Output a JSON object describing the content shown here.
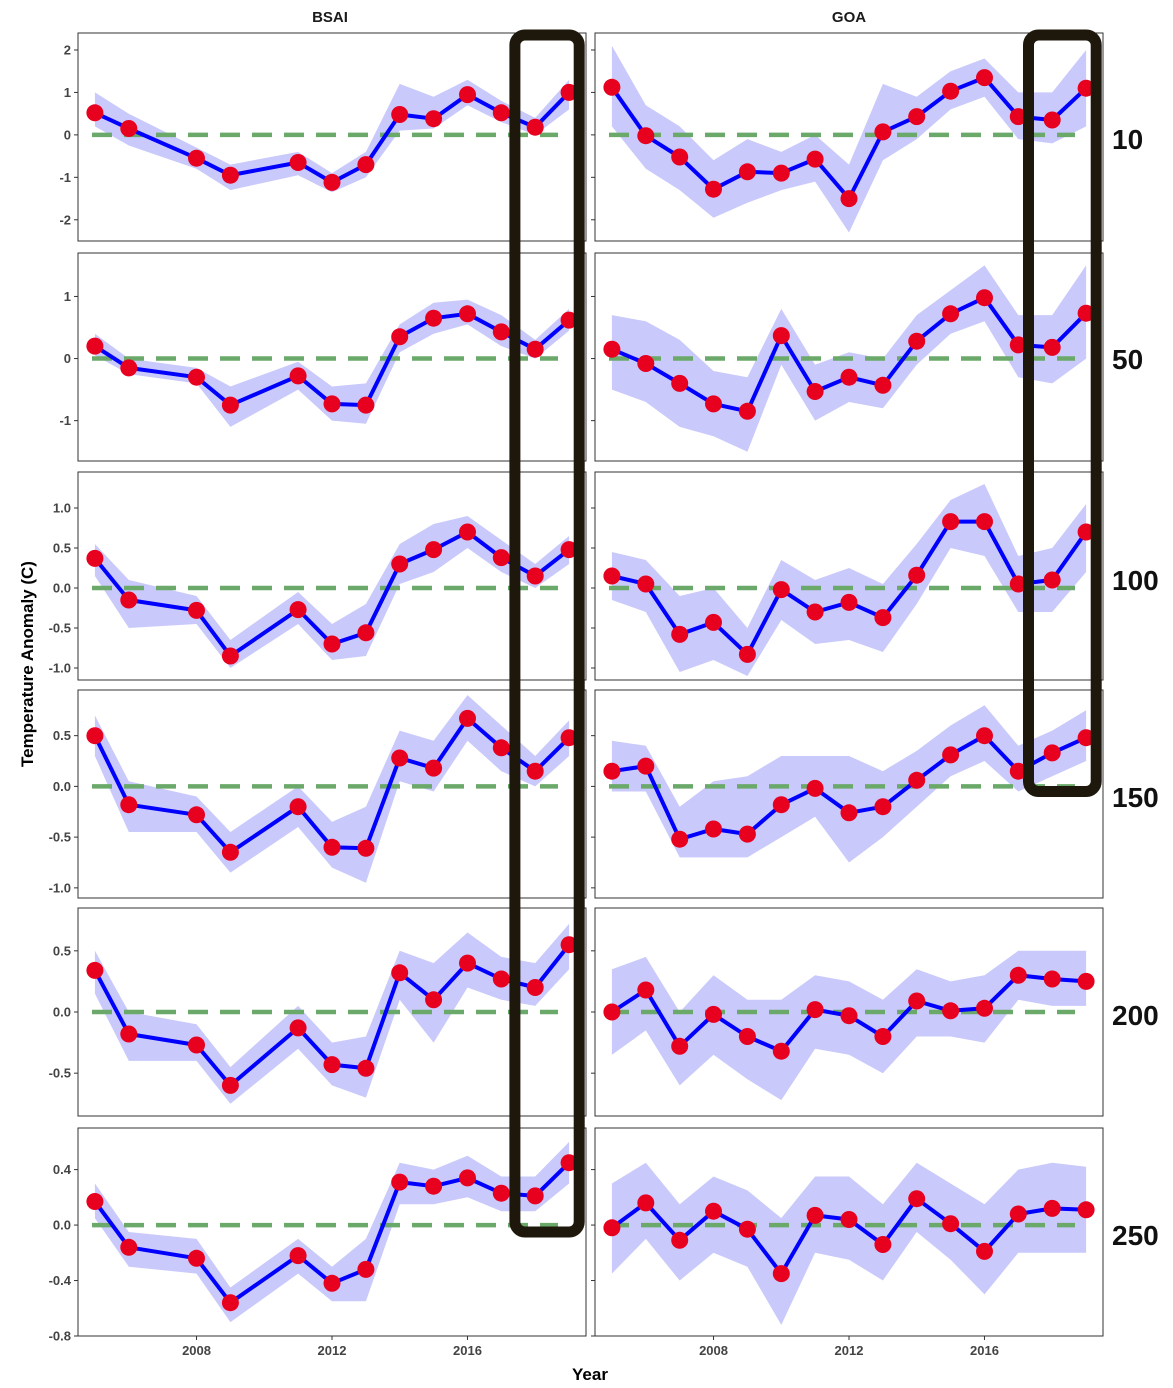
{
  "chart_data": {
    "type": "line",
    "xlabel": "Year",
    "ylabel": "Temperature Anomaly (C)",
    "columns": [
      "BSAI",
      "GOA"
    ],
    "rows": [
      "10",
      "50",
      "100",
      "150",
      "200",
      "250"
    ],
    "x_ticks": [
      2008,
      2012,
      2016
    ],
    "xlim": [
      2004.5,
      2019.5
    ],
    "grid": false,
    "colors": {
      "line": "#0000ff",
      "point": "#e8001f",
      "ribbon": "#c9c9fb",
      "zero_line": "#6aa96a",
      "highlight_box": "#1e170b"
    },
    "highlights": [
      {
        "column": "BSAI",
        "rows": [
          "10",
          "250"
        ],
        "x_range": [
          2017.4,
          2019.3
        ]
      },
      {
        "column": "GOA",
        "rows": [
          "10",
          "150"
        ],
        "x_range": [
          2017.3,
          2019.3
        ]
      }
    ],
    "panels": {
      "BSAI": {
        "x": [
          2005,
          2006,
          2008,
          2009,
          2011,
          2012,
          2013,
          2014,
          2015,
          2016,
          2017,
          2018,
          2019
        ],
        "10": {
          "ylim": [
            -2.5,
            2.4
          ],
          "yticks": [
            -2,
            -1,
            0,
            1,
            2
          ],
          "tick_labels": [
            "-2",
            "-1",
            "0",
            "1",
            "2"
          ],
          "y": [
            0.52,
            0.15,
            -0.55,
            -0.95,
            -0.65,
            -1.12,
            -0.7,
            0.48,
            0.38,
            0.95,
            0.52,
            0.18,
            1.0
          ],
          "lower": [
            0.2,
            -0.25,
            -0.8,
            -1.3,
            -0.95,
            -1.35,
            -1.0,
            0.1,
            0.15,
            0.7,
            0.3,
            0.0,
            0.6
          ],
          "upper": [
            1.0,
            0.5,
            -0.3,
            -0.7,
            -0.4,
            -0.9,
            -0.4,
            1.2,
            0.9,
            1.3,
            0.8,
            0.4,
            1.3
          ]
        },
        "50": {
          "ylim": [
            -1.65,
            1.7
          ],
          "yticks": [
            -1,
            0,
            1
          ],
          "tick_labels": [
            "-1",
            "0",
            "1"
          ],
          "y": [
            0.2,
            -0.15,
            -0.3,
            -0.75,
            -0.28,
            -0.73,
            -0.75,
            0.35,
            0.65,
            0.72,
            0.43,
            0.15,
            0.62
          ],
          "lower": [
            0.05,
            -0.25,
            -0.4,
            -1.1,
            -0.5,
            -1.0,
            -1.05,
            0.1,
            0.4,
            0.55,
            0.2,
            0.0,
            0.45
          ],
          "upper": [
            0.4,
            0.0,
            -0.15,
            -0.45,
            -0.05,
            -0.45,
            -0.4,
            0.55,
            0.9,
            0.95,
            0.7,
            0.3,
            0.8
          ]
        },
        "100": {
          "ylim": [
            -1.15,
            1.45
          ],
          "yticks": [
            -1.0,
            -0.5,
            0.0,
            0.5,
            1.0
          ],
          "tick_labels": [
            "-1.0",
            "-0.5",
            "0.0",
            "0.5",
            "1.0"
          ],
          "y": [
            0.37,
            -0.15,
            -0.28,
            -0.85,
            -0.27,
            -0.7,
            -0.56,
            0.3,
            0.48,
            0.7,
            0.38,
            0.15,
            0.48
          ],
          "lower": [
            0.15,
            -0.5,
            -0.45,
            -1.0,
            -0.45,
            -0.9,
            -0.85,
            0.05,
            0.2,
            0.5,
            0.2,
            0.0,
            0.3
          ],
          "upper": [
            0.55,
            0.1,
            -0.1,
            -0.65,
            -0.05,
            -0.45,
            -0.2,
            0.55,
            0.8,
            0.9,
            0.6,
            0.3,
            0.65
          ]
        },
        "150": {
          "ylim": [
            -1.1,
            0.95
          ],
          "yticks": [
            -1.0,
            -0.5,
            0.0,
            0.5
          ],
          "tick_labels": [
            "-1.0",
            "-0.5",
            "0.0",
            "0.5"
          ],
          "y": [
            0.5,
            -0.18,
            -0.28,
            -0.65,
            -0.2,
            -0.6,
            -0.61,
            0.28,
            0.18,
            0.67,
            0.38,
            0.15,
            0.48
          ],
          "lower": [
            0.3,
            -0.45,
            -0.45,
            -0.85,
            -0.4,
            -0.8,
            -0.95,
            0.05,
            -0.05,
            0.45,
            0.15,
            0.0,
            0.3
          ],
          "upper": [
            0.7,
            0.05,
            -0.1,
            -0.45,
            0.0,
            -0.35,
            -0.2,
            0.55,
            0.45,
            0.9,
            0.6,
            0.3,
            0.65
          ]
        },
        "200": {
          "ylim": [
            -0.85,
            0.85
          ],
          "yticks": [
            -0.5,
            0.0,
            0.5
          ],
          "tick_labels": [
            "-0.5",
            "0.0",
            "0.5"
          ],
          "y": [
            0.34,
            -0.18,
            -0.27,
            -0.6,
            -0.13,
            -0.43,
            -0.46,
            0.32,
            0.1,
            0.4,
            0.27,
            0.2,
            0.55
          ],
          "lower": [
            0.15,
            -0.4,
            -0.4,
            -0.75,
            -0.3,
            -0.6,
            -0.7,
            0.1,
            -0.25,
            0.2,
            0.1,
            0.05,
            0.35
          ],
          "upper": [
            0.5,
            0.0,
            -0.1,
            -0.45,
            0.05,
            -0.25,
            -0.2,
            0.5,
            0.4,
            0.65,
            0.45,
            0.4,
            0.72
          ]
        },
        "250": {
          "ylim": [
            -0.8,
            0.7
          ],
          "yticks": [
            -0.8,
            -0.4,
            0.0,
            0.4
          ],
          "tick_labels": [
            "-0.8",
            "-0.4",
            "0.0",
            "0.4"
          ],
          "y": [
            0.17,
            -0.16,
            -0.24,
            -0.56,
            -0.22,
            -0.42,
            -0.32,
            0.31,
            0.28,
            0.34,
            0.23,
            0.21,
            0.45
          ],
          "lower": [
            0.05,
            -0.3,
            -0.35,
            -0.7,
            -0.35,
            -0.55,
            -0.55,
            0.15,
            0.15,
            0.2,
            0.1,
            0.1,
            0.3
          ],
          "upper": [
            0.3,
            -0.05,
            -0.1,
            -0.45,
            -0.1,
            -0.3,
            -0.1,
            0.45,
            0.4,
            0.5,
            0.35,
            0.35,
            0.6
          ]
        }
      },
      "GOA": {
        "x": [
          2005,
          2006,
          2007,
          2008,
          2009,
          2010,
          2011,
          2012,
          2013,
          2014,
          2015,
          2016,
          2017,
          2018,
          2019
        ],
        "10": {
          "ylim": [
            -2.5,
            2.4
          ],
          "yticks": [
            -2,
            -1,
            0,
            1,
            2
          ],
          "tick_labels": [
            "-2",
            "-1",
            "0",
            "1",
            "2"
          ],
          "y": [
            1.12,
            -0.02,
            -0.52,
            -1.28,
            -0.87,
            -0.9,
            -0.57,
            -1.5,
            0.07,
            0.43,
            1.03,
            1.35,
            0.43,
            0.35,
            1.1
          ],
          "lower": [
            0.2,
            -0.8,
            -1.3,
            -1.95,
            -1.6,
            -1.3,
            -1.1,
            -2.3,
            -0.6,
            -0.1,
            0.6,
            0.9,
            -0.1,
            -0.2,
            0.2
          ],
          "upper": [
            2.1,
            0.7,
            0.2,
            -0.6,
            -0.1,
            -0.4,
            0.0,
            -0.7,
            1.2,
            0.9,
            1.5,
            1.8,
            1.0,
            1.0,
            2.0
          ]
        },
        "50": {
          "ylim": [
            -1.65,
            1.7
          ],
          "yticks": [
            -1,
            0,
            1
          ],
          "tick_labels": [
            "-1",
            "0",
            "1"
          ],
          "y": [
            0.15,
            -0.08,
            -0.4,
            -0.73,
            -0.85,
            0.37,
            -0.53,
            -0.3,
            -0.43,
            0.28,
            0.72,
            0.98,
            0.22,
            0.18,
            0.73
          ],
          "lower": [
            -0.5,
            -0.7,
            -1.1,
            -1.25,
            -1.5,
            -0.1,
            -1.0,
            -0.7,
            -0.8,
            -0.1,
            0.4,
            0.6,
            -0.3,
            -0.4,
            0.0
          ],
          "upper": [
            0.7,
            0.6,
            0.3,
            -0.2,
            -0.3,
            0.8,
            -0.1,
            0.1,
            0.0,
            0.7,
            1.1,
            1.5,
            0.7,
            0.7,
            1.5
          ]
        },
        "100": {
          "ylim": [
            -1.15,
            1.45
          ],
          "yticks": [
            -1.0,
            -0.5,
            0.0,
            0.5,
            1.0
          ],
          "tick_labels": [
            "-1.0",
            "-0.5",
            "0.0",
            "0.5",
            "1.0"
          ],
          "y": [
            0.15,
            0.05,
            -0.58,
            -0.43,
            -0.83,
            -0.02,
            -0.3,
            -0.18,
            -0.37,
            0.16,
            0.83,
            0.83,
            0.05,
            0.1,
            0.7
          ],
          "lower": [
            -0.15,
            -0.3,
            -1.05,
            -0.9,
            -1.1,
            -0.4,
            -0.7,
            -0.65,
            -0.8,
            -0.2,
            0.5,
            0.4,
            -0.3,
            -0.3,
            0.2
          ],
          "upper": [
            0.45,
            0.35,
            -0.1,
            0.0,
            -0.5,
            0.35,
            0.1,
            0.25,
            0.05,
            0.55,
            1.1,
            1.3,
            0.4,
            0.5,
            1.05
          ]
        },
        "150": {
          "ylim": [
            -1.1,
            0.95
          ],
          "yticks": [
            -1.0,
            -0.5,
            0.0,
            0.5
          ],
          "tick_labels": [
            "-1.0",
            "-0.5",
            "0.0",
            "0.5"
          ],
          "y": [
            0.15,
            0.2,
            -0.52,
            -0.42,
            -0.47,
            -0.18,
            -0.02,
            -0.26,
            -0.2,
            0.06,
            0.31,
            0.5,
            0.15,
            0.33,
            0.48
          ],
          "lower": [
            -0.05,
            -0.05,
            -0.7,
            -0.7,
            -0.7,
            -0.5,
            -0.3,
            -0.75,
            -0.5,
            -0.2,
            0.1,
            0.25,
            -0.05,
            0.1,
            0.25
          ],
          "upper": [
            0.45,
            0.4,
            -0.2,
            0.05,
            0.1,
            0.3,
            0.3,
            0.3,
            0.15,
            0.35,
            0.6,
            0.8,
            0.4,
            0.55,
            0.75
          ]
        },
        "200": {
          "ylim": [
            -0.85,
            0.85
          ],
          "yticks": [
            -0.5,
            0.0,
            0.5
          ],
          "tick_labels": [
            "-0.5",
            "0.0",
            "0.5"
          ],
          "y": [
            0.0,
            0.18,
            -0.28,
            -0.02,
            -0.2,
            -0.32,
            0.02,
            -0.03,
            -0.2,
            0.09,
            0.01,
            0.03,
            0.3,
            0.27,
            0.25
          ],
          "lower": [
            -0.35,
            -0.15,
            -0.6,
            -0.35,
            -0.55,
            -0.72,
            -0.3,
            -0.35,
            -0.5,
            -0.2,
            -0.2,
            -0.25,
            0.1,
            0.05,
            0.05
          ],
          "upper": [
            0.35,
            0.45,
            0.0,
            0.3,
            0.1,
            0.1,
            0.3,
            0.25,
            0.1,
            0.35,
            0.25,
            0.3,
            0.5,
            0.5,
            0.5
          ]
        },
        "250": {
          "ylim": [
            -0.8,
            0.7
          ],
          "yticks": [
            -0.8,
            -0.4,
            0.0,
            0.4
          ],
          "tick_labels": [
            "-0.8",
            "-0.4",
            "0.0",
            "0.4"
          ],
          "y": [
            -0.02,
            0.16,
            -0.11,
            0.1,
            -0.03,
            -0.35,
            0.07,
            0.04,
            -0.14,
            0.19,
            0.01,
            -0.19,
            0.08,
            0.12,
            0.11
          ],
          "lower": [
            -0.35,
            -0.1,
            -0.4,
            -0.2,
            -0.3,
            -0.72,
            -0.2,
            -0.25,
            -0.4,
            -0.05,
            -0.25,
            -0.5,
            -0.2,
            -0.2,
            -0.2
          ],
          "upper": [
            0.3,
            0.45,
            0.15,
            0.35,
            0.25,
            0.05,
            0.35,
            0.35,
            0.15,
            0.45,
            0.3,
            0.15,
            0.4,
            0.45,
            0.42
          ]
        }
      }
    }
  }
}
